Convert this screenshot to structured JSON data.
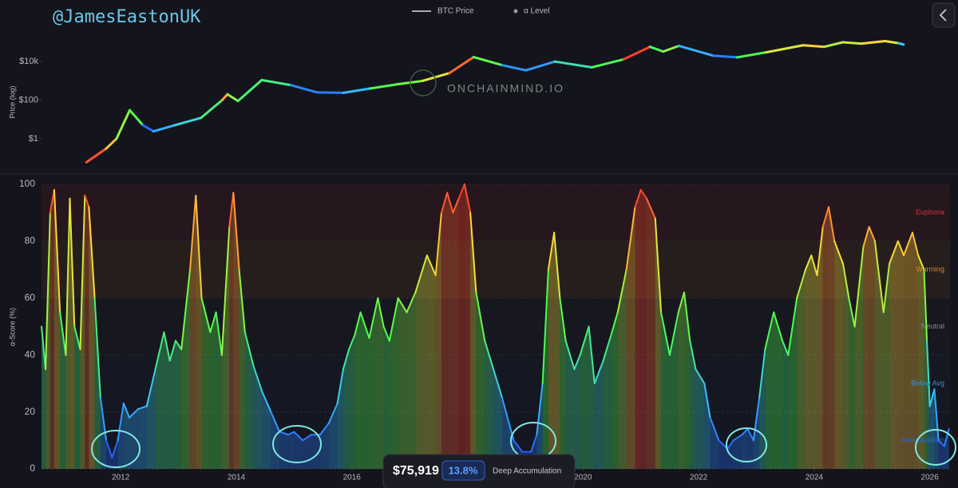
{
  "overlay": {
    "handle": "@JamesEastonUK",
    "brand": "ONCHAINMIND.IO",
    "badge": {
      "price": "$75,919",
      "score": "13.8%",
      "status": "Deep Accumulation"
    }
  },
  "chart_data": [
    {
      "type": "line",
      "ylabel": "Price (log)",
      "log_scale": true,
      "xlim": [
        2009.78,
        2026.98
      ],
      "ylim": [
        0.02,
        6000000
      ],
      "yticks": [
        {
          "value": 1,
          "label": "$1"
        },
        {
          "value": 100,
          "label": "$100"
        },
        {
          "value": 10000,
          "label": "$10k"
        }
      ],
      "x": [
        2010.63,
        2011.0,
        2011.2,
        2011.45,
        2011.7,
        2011.9,
        2012.3,
        2012.8,
        2013.2,
        2013.3,
        2013.5,
        2013.95,
        2014.5,
        2015.0,
        2015.5,
        2016.0,
        2016.5,
        2017.0,
        2017.5,
        2017.96,
        2018.5,
        2018.95,
        2019.5,
        2020.2,
        2020.8,
        2021.3,
        2021.55,
        2021.85,
        2022.5,
        2022.95,
        2023.5,
        2024.2,
        2024.6,
        2024.95,
        2025.3,
        2025.75,
        2026.0,
        2026.1
      ],
      "series": [
        {
          "name": "BTC Price",
          "color": "#e0e0e0",
          "values": [
            0.06,
            0.3,
            1,
            30,
            5,
            2.4,
            5,
            12,
            100,
            200,
            90,
            1100,
            600,
            250,
            240,
            400,
            650,
            1000,
            2500,
            17000,
            6500,
            3500,
            10000,
            5000,
            13000,
            58000,
            33000,
            65000,
            20000,
            16500,
            30000,
            70000,
            58000,
            100000,
            85000,
            115000,
            90000,
            76000
          ]
        }
      ]
    },
    {
      "type": "area",
      "ylabel": "α-Score (%)",
      "xlim": [
        2010.63,
        2026.35
      ],
      "ylim": [
        0,
        100
      ],
      "yticks": [
        0,
        20,
        40,
        60,
        80,
        100
      ],
      "xticks": [
        2012,
        2014,
        2016,
        2018,
        2020,
        2022,
        2024,
        2026
      ],
      "grid": true,
      "colorscale": [
        [
          0,
          "#2040ff"
        ],
        [
          25,
          "#35c8ff"
        ],
        [
          50,
          "#4cff4c"
        ],
        [
          75,
          "#ffe03a"
        ],
        [
          100,
          "#ff2a2a"
        ]
      ],
      "zones": [
        {
          "name": "Euphoria",
          "from": 80,
          "to": 100,
          "color": "#e03030"
        },
        {
          "name": "Warming",
          "from": 60,
          "to": 80,
          "color": "#d88a2a"
        },
        {
          "name": "Neutral",
          "from": 40,
          "to": 60,
          "color": "#8a8a8a"
        },
        {
          "name": "Below Avg",
          "from": 20,
          "to": 40,
          "color": "#3c8ed8"
        },
        {
          "name": "Accumulation",
          "from": 0,
          "to": 20,
          "color": "#2a6ad8"
        }
      ],
      "x": [
        2010.63,
        2010.7,
        2010.78,
        2010.85,
        2010.95,
        2011.05,
        2011.12,
        2011.2,
        2011.3,
        2011.38,
        2011.45,
        2011.55,
        2011.65,
        2011.75,
        2011.85,
        2011.95,
        2012.05,
        2012.15,
        2012.3,
        2012.45,
        2012.6,
        2012.75,
        2012.85,
        2012.95,
        2013.05,
        2013.2,
        2013.3,
        2013.4,
        2013.55,
        2013.65,
        2013.75,
        2013.88,
        2013.95,
        2014.05,
        2014.15,
        2014.3,
        2014.45,
        2014.6,
        2014.75,
        2014.9,
        2015.0,
        2015.15,
        2015.3,
        2015.45,
        2015.6,
        2015.75,
        2015.85,
        2015.95,
        2016.05,
        2016.15,
        2016.3,
        2016.45,
        2016.55,
        2016.65,
        2016.8,
        2016.95,
        2017.1,
        2017.3,
        2017.45,
        2017.55,
        2017.65,
        2017.75,
        2017.85,
        2017.95,
        2018.05,
        2018.15,
        2018.3,
        2018.45,
        2018.6,
        2018.8,
        2018.95,
        2019.1,
        2019.2,
        2019.3,
        2019.4,
        2019.5,
        2019.6,
        2019.7,
        2019.85,
        2019.95,
        2020.1,
        2020.2,
        2020.35,
        2020.5,
        2020.6,
        2020.75,
        2020.9,
        2021.0,
        2021.1,
        2021.25,
        2021.35,
        2021.5,
        2021.65,
        2021.75,
        2021.85,
        2021.95,
        2022.1,
        2022.2,
        2022.35,
        2022.5,
        2022.6,
        2022.75,
        2022.85,
        2022.95,
        2023.05,
        2023.15,
        2023.3,
        2023.45,
        2023.55,
        2023.7,
        2023.85,
        2023.95,
        2024.05,
        2024.15,
        2024.25,
        2024.35,
        2024.5,
        2024.6,
        2024.7,
        2024.85,
        2024.95,
        2025.05,
        2025.2,
        2025.3,
        2025.45,
        2025.55,
        2025.7,
        2025.8,
        2025.9,
        2025.95,
        2026.0,
        2026.08,
        2026.15,
        2026.25,
        2026.33
      ],
      "series": [
        {
          "name": "α Level",
          "color": "#9a9a9a",
          "values": [
            50,
            35,
            90,
            98,
            55,
            40,
            95,
            50,
            42,
            96,
            92,
            60,
            25,
            10,
            4,
            10,
            23,
            18,
            21,
            22,
            35,
            48,
            38,
            45,
            42,
            70,
            96,
            60,
            48,
            55,
            40,
            85,
            97,
            70,
            48,
            36,
            27,
            20,
            13,
            12,
            13,
            10,
            12,
            12,
            16,
            23,
            35,
            42,
            47,
            55,
            46,
            60,
            50,
            45,
            60,
            55,
            62,
            75,
            68,
            90,
            97,
            90,
            95,
            100,
            90,
            62,
            45,
            35,
            25,
            10,
            6,
            6,
            12,
            30,
            70,
            83,
            60,
            45,
            35,
            40,
            50,
            30,
            38,
            48,
            55,
            70,
            92,
            98,
            95,
            88,
            55,
            40,
            55,
            62,
            45,
            35,
            30,
            18,
            10,
            7,
            10,
            12,
            14,
            10,
            25,
            42,
            55,
            45,
            40,
            60,
            70,
            75,
            68,
            85,
            92,
            80,
            72,
            60,
            50,
            78,
            85,
            80,
            55,
            72,
            80,
            75,
            83,
            75,
            70,
            45,
            22,
            28,
            10,
            8,
            14
          ]
        }
      ]
    }
  ]
}
